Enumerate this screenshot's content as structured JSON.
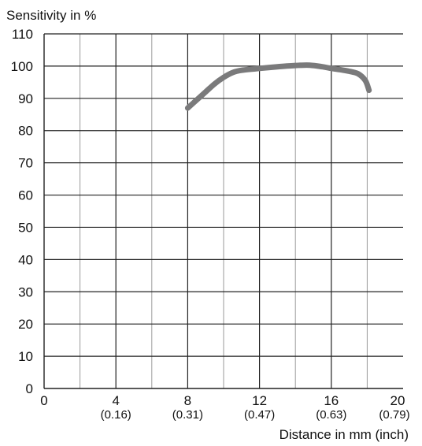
{
  "chart_data": {
    "type": "line",
    "ylabel": "Sensitivity in %",
    "xlabel": "Distance in mm (inch)",
    "xlim": [
      0,
      20
    ],
    "ylim": [
      0,
      110
    ],
    "x_ticks": [
      {
        "value": 0,
        "label": "0",
        "sub": ""
      },
      {
        "value": 4,
        "label": "4",
        "sub": "(0.16)"
      },
      {
        "value": 8,
        "label": "8",
        "sub": "(0.31)"
      },
      {
        "value": 12,
        "label": "12",
        "sub": "(0.47)"
      },
      {
        "value": 16,
        "label": "16",
        "sub": "(0.63)"
      },
      {
        "value": 20,
        "label": "20",
        "sub": "(0.79)"
      }
    ],
    "y_ticks": [
      0,
      10,
      20,
      30,
      40,
      50,
      60,
      70,
      80,
      90,
      100,
      110
    ],
    "grid": true,
    "series": [
      {
        "color": "#7a7a7b",
        "x": [
          8.0,
          8.5,
          9.0,
          9.5,
          10.0,
          10.5,
          11.0,
          12.0,
          13.0,
          14.0,
          14.8,
          15.5,
          16.0,
          16.5,
          17.0,
          17.5,
          17.9,
          18.1
        ],
        "y": [
          87,
          89.5,
          92,
          94.5,
          96.5,
          98,
          98.7,
          99.3,
          99.8,
          100.2,
          100.3,
          99.8,
          99.3,
          98.9,
          98.4,
          97.6,
          95.5,
          92.5
        ]
      }
    ]
  }
}
